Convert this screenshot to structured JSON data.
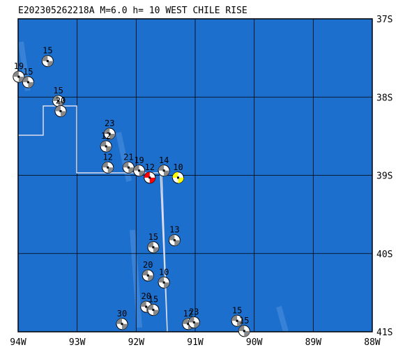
{
  "map": {
    "title": "E202305262218A  M=6.0  h= 10  WEST CHILE RISE",
    "lonlim": [
      -94,
      -88
    ],
    "latlim": [
      -41,
      -37
    ],
    "lonticks": [
      {
        "value": -94,
        "label": "94W"
      },
      {
        "value": -93,
        "label": "93W"
      },
      {
        "value": -92,
        "label": "92W"
      },
      {
        "value": -91,
        "label": "91W"
      },
      {
        "value": -90,
        "label": "90W"
      },
      {
        "value": -89,
        "label": "89W"
      },
      {
        "value": -88,
        "label": "88W"
      }
    ],
    "latticks": [
      {
        "value": -37,
        "label": "37S"
      },
      {
        "value": -38,
        "label": "38S"
      },
      {
        "value": -39,
        "label": "39S"
      },
      {
        "value": -40,
        "label": "40S"
      },
      {
        "value": -41,
        "label": "41S"
      }
    ],
    "events": [
      {
        "lon": -93.5,
        "lat": -37.54,
        "label": "15",
        "color": "#000000"
      },
      {
        "lon": -93.99,
        "lat": -37.74,
        "label": "19",
        "color": "#000000"
      },
      {
        "lon": -93.83,
        "lat": -37.81,
        "label": "15",
        "color": "#000000"
      },
      {
        "lon": -93.32,
        "lat": -38.05,
        "label": "15",
        "color": "#000000"
      },
      {
        "lon": -93.28,
        "lat": -38.18,
        "label": "20",
        "color": "#000000"
      },
      {
        "lon": -92.45,
        "lat": -38.47,
        "label": "23",
        "color": "#000000"
      },
      {
        "lon": -92.51,
        "lat": -38.63,
        "label": "12",
        "color": "#000000"
      },
      {
        "lon": -92.48,
        "lat": -38.9,
        "label": "12",
        "color": "#000000"
      },
      {
        "lon": -92.13,
        "lat": -38.9,
        "label": "21",
        "color": "#000000"
      },
      {
        "lon": -91.95,
        "lat": -38.94,
        "label": "19",
        "color": "#000000"
      },
      {
        "lon": -91.77,
        "lat": -39.03,
        "label": "12",
        "color": "#ff0000"
      },
      {
        "lon": -91.53,
        "lat": -38.94,
        "label": "14",
        "color": "#000000"
      },
      {
        "lon": -91.29,
        "lat": -39.03,
        "label": "10",
        "color": "#ffff00"
      },
      {
        "lon": -91.35,
        "lat": -39.83,
        "label": "13",
        "color": "#000000"
      },
      {
        "lon": -91.71,
        "lat": -39.92,
        "label": "15",
        "color": "#000000"
      },
      {
        "lon": -91.8,
        "lat": -40.28,
        "label": "20",
        "color": "#000000"
      },
      {
        "lon": -91.53,
        "lat": -40.37,
        "label": "10",
        "color": "#000000"
      },
      {
        "lon": -91.83,
        "lat": -40.68,
        "label": "20",
        "color": "#000000"
      },
      {
        "lon": -91.71,
        "lat": -40.72,
        "label": "15",
        "color": "#000000"
      },
      {
        "lon": -92.24,
        "lat": -40.9,
        "label": "30",
        "color": "#000000"
      },
      {
        "lon": -91.12,
        "lat": -40.9,
        "label": "12",
        "color": "#000000"
      },
      {
        "lon": -91.02,
        "lat": -40.88,
        "label": "23",
        "color": "#000000"
      },
      {
        "lon": -90.29,
        "lat": -40.86,
        "label": "15",
        "color": "#000000"
      },
      {
        "lon": -90.17,
        "lat": -40.99,
        "label": "15",
        "color": "#000000"
      }
    ]
  }
}
